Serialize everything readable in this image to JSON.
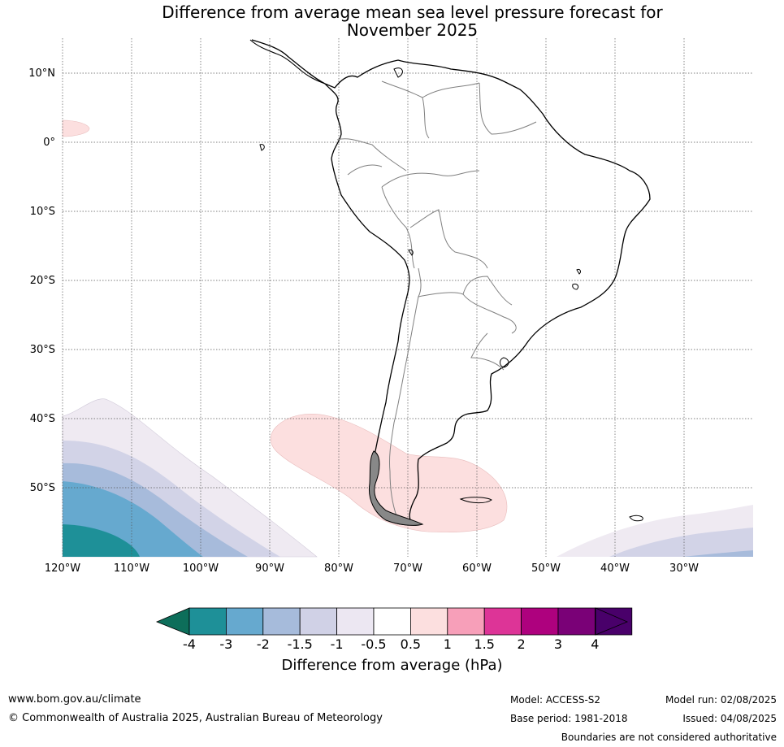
{
  "title_line1": "Difference from average mean sea level pressure forecast for",
  "title_line2": "November 2025",
  "lat_labels": [
    "10°N",
    "0°",
    "10°S",
    "20°S",
    "30°S",
    "40°S",
    "50°S"
  ],
  "lon_labels": [
    "120°W",
    "110°W",
    "100°W",
    "90°W",
    "80°W",
    "70°W",
    "60°W",
    "50°W",
    "40°W",
    "30°W"
  ],
  "colorbar": {
    "ticks": [
      "-4",
      "-3",
      "-2",
      "-1.5",
      "-1",
      "-0.5",
      "0.5",
      "1",
      "1.5",
      "2",
      "3",
      "4"
    ],
    "colors": [
      "#1e9098",
      "#66a9cf",
      "#a6bbdb",
      "#d0d1e6",
      "#ece7f2",
      "#ffffff",
      "#fcdfdf",
      "#f79fb9",
      "#dd3497",
      "#ae017e",
      "#7a0177",
      "#49006a"
    ],
    "under_color": "#016c59",
    "label": "Difference from average (hPa)"
  },
  "footer": {
    "url": "www.bom.gov.au/climate",
    "copyright": "© Commonwealth of Australia 2025, Australian Bureau of Meteorology",
    "model": "Model: ACCESS-S2",
    "model_run": "Model run: 02/08/2025",
    "base_period": "Base period: 1981-2018",
    "issued": "Issued: 04/08/2025",
    "disclaimer": "Boundaries are not considered authoritative"
  }
}
